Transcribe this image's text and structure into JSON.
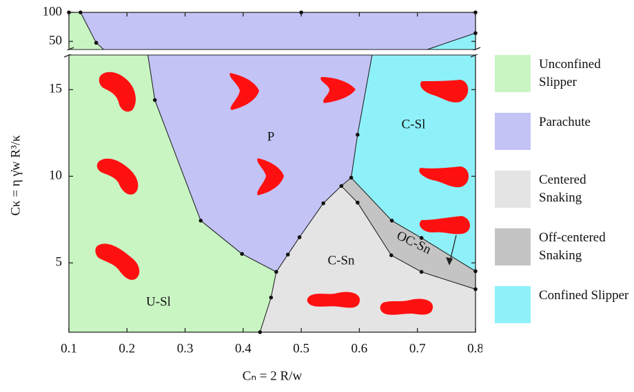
{
  "chart_data": {
    "type": "phase-diagram",
    "x_label": "Cₙ = 2 R/w",
    "y_label": "Cκ = η γ̇w R³/κ",
    "xlim": [
      0.1,
      0.8
    ],
    "xticks": [
      0.1,
      0.2,
      0.3,
      0.4,
      0.5,
      0.6,
      0.7,
      0.8
    ],
    "ylim": [
      1,
      17
    ],
    "yticks": [
      5,
      10,
      15
    ],
    "upper_ylim": [
      36,
      100
    ],
    "upper_yticks": [
      50,
      100
    ],
    "series": [
      {
        "name": "Unconfined Slipper",
        "label": "U-Sl",
        "color": "#c9f5c3",
        "x": [
          0.1,
          0.1,
          0.236,
          0.248,
          0.327,
          0.398,
          0.457,
          0.448,
          0.429
        ],
        "y": [
          1,
          17,
          17,
          14.4,
          7.44,
          5.52,
          4.48,
          3.0,
          1
        ],
        "upper_x": [
          0.1,
          0.1,
          0.12,
          0.147,
          0.16
        ],
        "upper_y": [
          36,
          100,
          100,
          47.6,
          36
        ]
      },
      {
        "name": "Parachute",
        "label": "P",
        "color": "#c3c3f6",
        "x": [
          0.236,
          0.622,
          0.597,
          0.586,
          0.569,
          0.538,
          0.497,
          0.477,
          0.457,
          0.398,
          0.327,
          0.248
        ],
        "y": [
          17,
          17,
          12.4,
          9.92,
          9.44,
          8.44,
          6.48,
          5.48,
          4.48,
          5.52,
          7.44,
          14.4
        ],
        "upper_x": [
          0.12,
          0.8,
          0.8,
          0.717,
          0.16,
          0.147
        ],
        "upper_y": [
          100,
          100,
          64.3,
          36,
          36,
          47.6
        ]
      },
      {
        "name": "Centered Snaking",
        "label": "C-Sn",
        "color": "#e4e4e4",
        "x": [
          0.429,
          0.448,
          0.457,
          0.477,
          0.497,
          0.538,
          0.569,
          0.597,
          0.655,
          0.707,
          0.8,
          0.8
        ],
        "y": [
          1,
          3.0,
          4.48,
          5.48,
          6.48,
          8.44,
          9.44,
          8.48,
          5.44,
          4.48,
          3.48,
          1
        ]
      },
      {
        "name": "Off-centered Snaking",
        "label": "OC-Sn",
        "color": "#c4c4c4",
        "x": [
          0.569,
          0.586,
          0.656,
          0.707,
          0.8,
          0.8,
          0.707,
          0.655,
          0.597
        ],
        "y": [
          9.44,
          9.92,
          7.44,
          6.44,
          4.52,
          3.48,
          4.48,
          5.44,
          8.48
        ]
      },
      {
        "name": "Confined Slipper",
        "label": "C-Sl",
        "color": "#8ef1f9",
        "x": [
          0.622,
          0.8,
          0.8,
          0.707,
          0.656,
          0.586,
          0.597
        ],
        "y": [
          17,
          17,
          4.52,
          6.44,
          7.44,
          9.92,
          12.4
        ],
        "upper_x": [
          0.8,
          0.8,
          0.717
        ],
        "upper_y": [
          64.3,
          36,
          36
        ]
      }
    ],
    "points": {
      "x": [
        0.248,
        0.327,
        0.398,
        0.457,
        0.448,
        0.429,
        0.477,
        0.497,
        0.538,
        0.569,
        0.586,
        0.597,
        0.597,
        0.655,
        0.707,
        0.8,
        0.656,
        0.707,
        0.8
      ],
      "y": [
        14.4,
        7.44,
        5.52,
        4.48,
        3.0,
        1,
        5.48,
        6.48,
        8.44,
        9.44,
        9.92,
        12.4,
        8.48,
        5.44,
        4.48,
        3.48,
        7.44,
        6.44,
        4.52
      ]
    },
    "upper_points": {
      "x": [
        0.1,
        0.12,
        0.147,
        0.5,
        0.8,
        0.8
      ],
      "y": [
        100,
        100,
        47.6,
        100,
        100,
        64.3
      ]
    }
  }
}
